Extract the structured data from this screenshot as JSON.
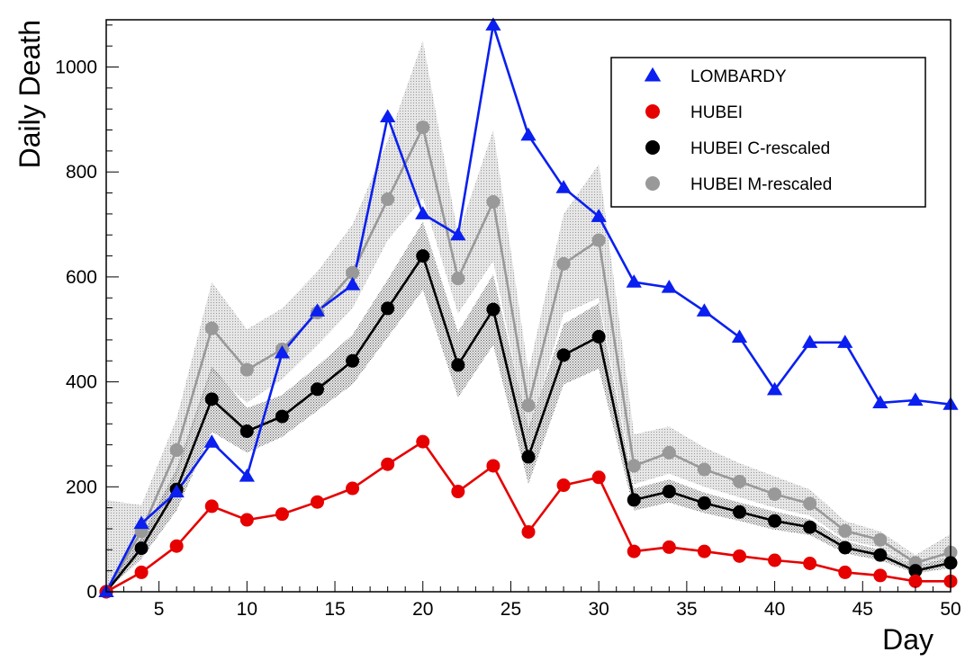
{
  "chart_data": {
    "type": "line",
    "title": "",
    "xlabel": "Day",
    "ylabel": "Daily Death",
    "xlim": [
      2,
      50
    ],
    "ylim": [
      0,
      1090
    ],
    "x_ticks": [
      5,
      10,
      15,
      20,
      25,
      30,
      35,
      40,
      45,
      50
    ],
    "y_ticks": [
      0,
      200,
      400,
      600,
      800,
      1000
    ],
    "legend_position": "top-right",
    "series": [
      {
        "name": "LOMBARDY",
        "color": "#0a1ff0",
        "marker": "triangle",
        "x": [
          2,
          4,
          6,
          8,
          10,
          12,
          14,
          16,
          18,
          20,
          22,
          24,
          26,
          28,
          30,
          32,
          34,
          36,
          38,
          40,
          42,
          44,
          46,
          48,
          50
        ],
        "values": [
          0,
          130,
          190,
          285,
          220,
          455,
          535,
          585,
          905,
          720,
          680,
          1080,
          870,
          770,
          715,
          590,
          580,
          535,
          485,
          385,
          475,
          475,
          360,
          365,
          357
        ]
      },
      {
        "name": "HUBEI",
        "color": "#e60000",
        "marker": "circle",
        "x": [
          2,
          4,
          6,
          8,
          10,
          12,
          14,
          16,
          18,
          20,
          22,
          24,
          26,
          28,
          30,
          32,
          34,
          36,
          38,
          40,
          42,
          44,
          46,
          48,
          50
        ],
        "values": [
          0,
          37,
          87,
          163,
          137,
          148,
          171,
          197,
          243,
          286,
          191,
          240,
          114,
          203,
          218,
          77,
          85,
          77,
          68,
          60,
          54,
          37,
          31,
          20,
          20
        ]
      },
      {
        "name": "HUBEI C-rescaled",
        "color": "#000000",
        "marker": "circle",
        "x": [
          2,
          4,
          6,
          8,
          10,
          12,
          14,
          16,
          18,
          20,
          22,
          24,
          26,
          28,
          30,
          32,
          34,
          36,
          38,
          40,
          42,
          44,
          46,
          48,
          50
        ],
        "values": [
          0,
          83,
          195,
          367,
          306,
          334,
          386,
          440,
          540,
          640,
          432,
          538,
          257,
          451,
          486,
          175,
          191,
          169,
          152,
          135,
          123,
          84,
          70,
          40,
          55
        ],
        "band": {
          "lower": [
            0,
            63,
            155,
            305,
            265,
            295,
            345,
            395,
            485,
            575,
            370,
            470,
            205,
            395,
            425,
            155,
            170,
            150,
            135,
            118,
            108,
            73,
            60,
            35,
            45
          ],
          "upper": [
            0,
            105,
            235,
            430,
            350,
            375,
            430,
            490,
            595,
            705,
            495,
            605,
            310,
            510,
            550,
            197,
            214,
            189,
            170,
            153,
            138,
            96,
            80,
            48,
            66
          ]
        }
      },
      {
        "name": "HUBEI M-rescaled",
        "color": "#999999",
        "marker": "circle",
        "x": [
          2,
          4,
          6,
          8,
          10,
          12,
          14,
          16,
          18,
          20,
          22,
          24,
          26,
          28,
          30,
          32,
          34,
          36,
          38,
          40,
          42,
          44,
          46,
          48,
          50
        ],
        "values": [
          0,
          115,
          270,
          502,
          423,
          462,
          532,
          608,
          748,
          885,
          597,
          743,
          355,
          625,
          670,
          240,
          265,
          233,
          210,
          186,
          168,
          116,
          99,
          55,
          75
        ],
        "band": {
          "lower": [
            0,
            80,
            220,
            420,
            360,
            405,
            470,
            540,
            670,
            750,
            530,
            630,
            300,
            530,
            560,
            205,
            225,
            200,
            180,
            160,
            145,
            99,
            84,
            45,
            62
          ],
          "upper": [
            175,
            165,
            330,
            590,
            500,
            540,
            610,
            700,
            860,
            1050,
            680,
            880,
            420,
            720,
            815,
            300,
            315,
            275,
            245,
            220,
            195,
            135,
            115,
            70,
            110
          ]
        }
      }
    ]
  }
}
